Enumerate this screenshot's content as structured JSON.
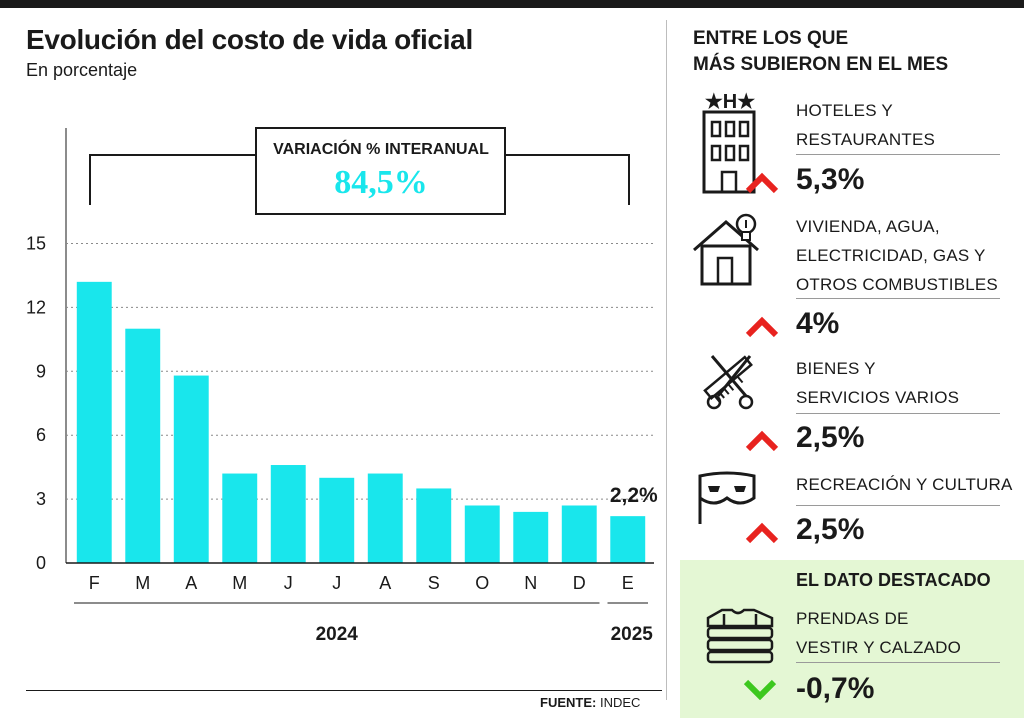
{
  "header": {
    "title": "Evolución del costo de vida oficial",
    "subtitle": "En porcentaje"
  },
  "annual": {
    "label": "VARIACIÓN % INTERANUAL",
    "value": "84,5%"
  },
  "last_label": "2,2%",
  "chart_data": {
    "type": "bar",
    "title": "Evolución del costo de vida oficial",
    "subtitle": "En porcentaje",
    "categories": [
      "F",
      "M",
      "A",
      "M",
      "J",
      "J",
      "A",
      "S",
      "O",
      "N",
      "D",
      "E"
    ],
    "years": [
      {
        "label": "2024",
        "from": 0,
        "to": 10
      },
      {
        "label": "2025",
        "from": 11,
        "to": 11
      }
    ],
    "values": [
      13.2,
      11.0,
      8.8,
      4.2,
      4.6,
      4.0,
      4.2,
      3.5,
      2.7,
      2.4,
      2.7,
      2.2
    ],
    "yticks": [
      0,
      3,
      6,
      9,
      12,
      15
    ],
    "ylim": [
      0,
      18
    ],
    "grid": true,
    "color": "#19e6ec"
  },
  "sidebar": {
    "heading_line1": "ENTRE LOS QUE",
    "heading_line2": "MÁS SUBIERON EN EL MES",
    "items": [
      {
        "icon": "hotel-icon",
        "lines": [
          "HOTELES Y",
          "RESTAURANTES"
        ],
        "value": "5,3%"
      },
      {
        "icon": "house-bulb-icon",
        "lines": [
          "VIVIENDA, AGUA,",
          "ELECTRICIDAD, GAS Y",
          "OTROS COMBUSTIBLES"
        ],
        "value": "4%"
      },
      {
        "icon": "scissors-comb-icon",
        "lines": [
          "BIENES Y",
          "SERVICIOS VARIOS"
        ],
        "value": "2,5%"
      },
      {
        "icon": "mask-icon",
        "lines": [
          "RECREACIÓN Y CULTURA"
        ],
        "value": "2,5%"
      }
    ],
    "highlight": {
      "heading": "EL DATO DESTACADO",
      "icon": "clothes-stack-icon",
      "lines": [
        "PRENDAS DE",
        "VESTIR Y CALZADO"
      ],
      "value": "-0,7%"
    }
  },
  "source": {
    "label": "FUENTE:",
    "value": "INDEC"
  },
  "colors": {
    "bar": "#19e6ec",
    "up": "#e8231f",
    "down": "#3cc81e",
    "highlight_bg": "#e4f7d4",
    "annual_value": "#19e6ec"
  }
}
